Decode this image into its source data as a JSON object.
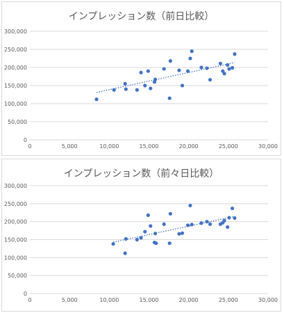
{
  "chart_data": [
    {
      "type": "scatter",
      "title": "インプレッション数（前日比較）",
      "xlim": [
        0,
        30000
      ],
      "ylim": [
        0,
        300000
      ],
      "x_ticks": [
        "0",
        "5,000",
        "10,000",
        "15,000",
        "20,000",
        "25,000",
        "30,000"
      ],
      "y_ticks": [
        "0",
        "50,000",
        "100,000",
        "150,000",
        "200,000",
        "250,000",
        "300,000"
      ],
      "grid": "horizontal",
      "trendline": "linear",
      "marker_color": "#4472c4",
      "points": [
        [
          8400,
          112000
        ],
        [
          10600,
          138000
        ],
        [
          12000,
          155000
        ],
        [
          12100,
          140000
        ],
        [
          13500,
          138000
        ],
        [
          14000,
          186000
        ],
        [
          14500,
          150000
        ],
        [
          14900,
          190000
        ],
        [
          15200,
          142000
        ],
        [
          15700,
          160000
        ],
        [
          15800,
          167000
        ],
        [
          16900,
          196000
        ],
        [
          17600,
          115000
        ],
        [
          17700,
          218000
        ],
        [
          18800,
          192000
        ],
        [
          19200,
          150000
        ],
        [
          19900,
          190000
        ],
        [
          20200,
          225000
        ],
        [
          20400,
          245000
        ],
        [
          21600,
          200000
        ],
        [
          22300,
          198000
        ],
        [
          22700,
          166000
        ],
        [
          24000,
          211000
        ],
        [
          24300,
          190000
        ],
        [
          24500,
          183000
        ],
        [
          24900,
          207000
        ],
        [
          25100,
          196000
        ],
        [
          25500,
          199000
        ],
        [
          25800,
          237000
        ]
      ]
    },
    {
      "type": "scatter",
      "title": "インプレッション数（前々日比較）",
      "xlim": [
        0,
        30000
      ],
      "ylim": [
        0,
        300000
      ],
      "x_ticks": [
        "0",
        "5,000",
        "10,000",
        "15,000",
        "20,000",
        "25,000",
        "30,000"
      ],
      "y_ticks": [
        "0",
        "50,000",
        "100,000",
        "150,000",
        "200,000",
        "250,000",
        "300,000"
      ],
      "grid": "horizontal",
      "trendline": "linear",
      "marker_color": "#4472c4",
      "points": [
        [
          10500,
          138000
        ],
        [
          12000,
          112000
        ],
        [
          12100,
          152000
        ],
        [
          13500,
          150000
        ],
        [
          14000,
          155000
        ],
        [
          14500,
          172000
        ],
        [
          14900,
          218000
        ],
        [
          15200,
          188000
        ],
        [
          15700,
          142000
        ],
        [
          15800,
          167000
        ],
        [
          15900,
          140000
        ],
        [
          16900,
          193000
        ],
        [
          17600,
          140000
        ],
        [
          17700,
          222000
        ],
        [
          18800,
          166000
        ],
        [
          19200,
          168000
        ],
        [
          19900,
          190000
        ],
        [
          20200,
          245000
        ],
        [
          20400,
          192000
        ],
        [
          21600,
          196000
        ],
        [
          22300,
          200000
        ],
        [
          22700,
          193000
        ],
        [
          24000,
          193000
        ],
        [
          24300,
          197000
        ],
        [
          24500,
          203000
        ],
        [
          24900,
          185000
        ],
        [
          25100,
          211000
        ],
        [
          25500,
          237000
        ],
        [
          25800,
          210000
        ]
      ]
    }
  ]
}
